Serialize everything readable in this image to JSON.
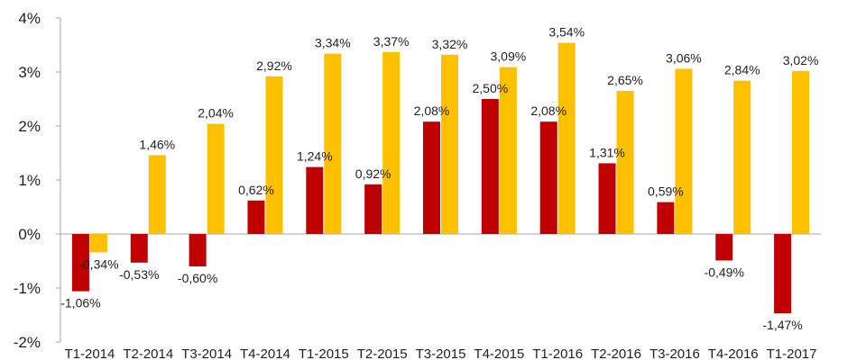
{
  "chart_data": {
    "type": "bar",
    "categories": [
      "T1-2014",
      "T2-2014",
      "T3-2014",
      "T4-2014",
      "T1-2015",
      "T2-2015",
      "T3-2015",
      "T4-2015",
      "T1-2016",
      "T2-2016",
      "T3-2016",
      "T4-2016",
      "T1-2017"
    ],
    "series": [
      {
        "color": "#c00000",
        "values": [
          -1.06,
          -0.53,
          -0.6,
          0.62,
          1.24,
          0.92,
          2.08,
          2.5,
          2.08,
          1.31,
          0.59,
          -0.49,
          -1.47
        ],
        "labels": [
          "-1,06%",
          "-0,53%",
          "-0,60%",
          "0,62%",
          "1,24%",
          "0,92%",
          "2,08%",
          "2,50%",
          "2,08%",
          "1,31%",
          "0,59%",
          "-0,49%",
          "-1,47%"
        ]
      },
      {
        "color": "#ffc000",
        "values": [
          -0.34,
          1.46,
          2.04,
          2.92,
          3.34,
          3.37,
          3.32,
          3.09,
          3.54,
          2.65,
          3.06,
          2.84,
          3.02
        ],
        "labels": [
          "-0,34%",
          "1,46%",
          "2,04%",
          "2,92%",
          "3,34%",
          "3,37%",
          "3,32%",
          "3,09%",
          "3,54%",
          "2,65%",
          "3,06%",
          "2,84%",
          "3,02%"
        ]
      }
    ],
    "y_ticks": [
      4,
      3,
      2,
      1,
      0,
      -1,
      -2
    ],
    "y_tick_labels": [
      "4%",
      "3%",
      "2%",
      "1%",
      "0%",
      "-1%",
      "-2%"
    ],
    "ylim": [
      -2,
      4
    ],
    "grid": false,
    "title": "",
    "xlabel": "",
    "ylabel": ""
  }
}
